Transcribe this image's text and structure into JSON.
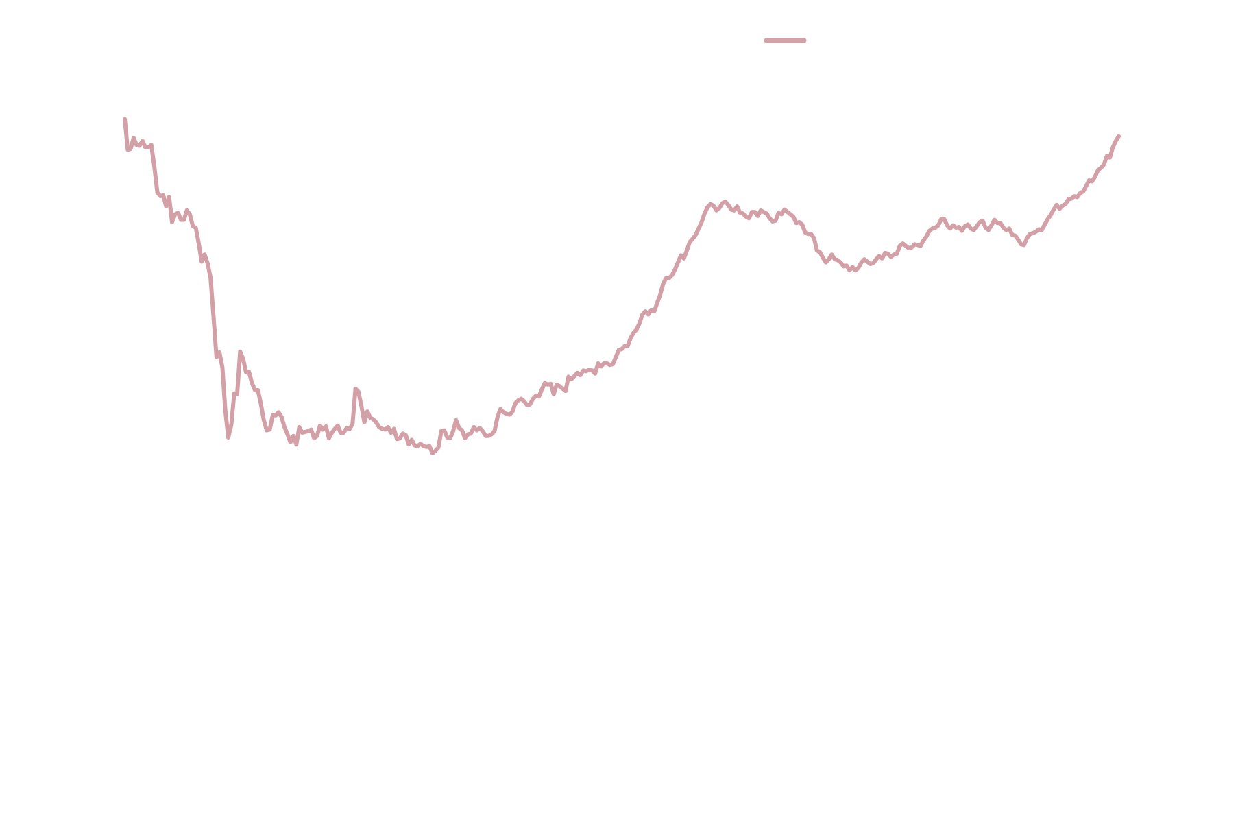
{
  "chart_data": {
    "type": "line",
    "title": "",
    "xlabel": "",
    "ylabel": "",
    "grid": false,
    "axes_visible": false,
    "legend_placement": "top-center",
    "x_range": [
      0,
      364
    ],
    "ylim": [
      0,
      100
    ],
    "series": [
      {
        "color": "#d4a0a7",
        "values": [
          88.4,
          84.5,
          84.6,
          86.0,
          85.1,
          85.0,
          85.6,
          84.8,
          84.8,
          85.1,
          82.3,
          79.1,
          78.6,
          78.7,
          77.3,
          78.5,
          75.3,
          76.3,
          76.5,
          75.6,
          75.6,
          76.8,
          76.3,
          74.8,
          74.6,
          72.6,
          70.3,
          71.2,
          70.1,
          68.3,
          63.3,
          58.2,
          58.8,
          56.9,
          51.4,
          48.0,
          49.6,
          53.6,
          53.5,
          58.9,
          58.0,
          56.3,
          56.3,
          54.9,
          54.0,
          54.0,
          52.3,
          50.2,
          48.9,
          49.0,
          50.8,
          50.8,
          51.2,
          50.6,
          49.3,
          48.4,
          47.4,
          48.2,
          47.1,
          49.3,
          48.6,
          48.7,
          48.8,
          49.0,
          47.9,
          48.2,
          49.5,
          49.0,
          49.4,
          47.9,
          48.6,
          49.1,
          49.5,
          48.6,
          48.6,
          49.2,
          49.1,
          49.7,
          54.2,
          53.8,
          52.0,
          49.9,
          51.3,
          50.5,
          50.3,
          49.9,
          49.3,
          49.1,
          49.0,
          49.3,
          48.6,
          49.1,
          47.8,
          47.9,
          48.5,
          48.3,
          47.1,
          47.7,
          47.0,
          46.9,
          47.2,
          46.9,
          46.8,
          46.9,
          46.0,
          46.3,
          46.7,
          48.8,
          48.9,
          48.0,
          47.9,
          48.8,
          50.2,
          49.2,
          48.9,
          47.9,
          48.4,
          48.5,
          49.3,
          48.9,
          49.2,
          48.8,
          48.2,
          48.2,
          48.4,
          48.8,
          50.6,
          51.6,
          51.2,
          51.0,
          50.9,
          51.2,
          52.3,
          52.7,
          52.9,
          52.6,
          52.1,
          52.2,
          52.9,
          53.3,
          53.2,
          54.1,
          54.9,
          54.7,
          54.8,
          53.5,
          54.7,
          54.5,
          54.2,
          53.9,
          55.7,
          55.4,
          55.8,
          56.2,
          55.9,
          56.5,
          56.4,
          56.6,
          56.5,
          56.1,
          57.4,
          57.0,
          57.4,
          57.4,
          57.2,
          57.3,
          58.2,
          59.1,
          59.2,
          59.6,
          59.6,
          60.6,
          61.3,
          61.7,
          62.5,
          63.6,
          64.0,
          63.6,
          64.2,
          64.0,
          65.1,
          66.1,
          67.5,
          68.2,
          68.2,
          68.6,
          69.3,
          70.2,
          71.1,
          70.7,
          71.7,
          72.8,
          73.2,
          73.7,
          74.5,
          75.3,
          76.4,
          77.2,
          77.6,
          77.4,
          76.8,
          77.1,
          77.7,
          77.9,
          77.5,
          76.9,
          76.8,
          77.3,
          76.5,
          76.4,
          76.0,
          75.8,
          76.6,
          76.6,
          76.1,
          76.8,
          76.6,
          76.4,
          75.8,
          75.4,
          75.5,
          76.5,
          76.3,
          76.9,
          76.6,
          76.3,
          76.0,
          75.2,
          75.3,
          75.0,
          74.0,
          73.8,
          73.8,
          73.3,
          71.7,
          71.5,
          70.8,
          70.2,
          70.6,
          71.2,
          70.6,
          70.5,
          70.2,
          69.7,
          69.8,
          69.2,
          69.6,
          69.2,
          69.5,
          70.2,
          70.6,
          70.3,
          70.0,
          70.1,
          70.6,
          71.0,
          70.7,
          71.4,
          71.3,
          70.9,
          71.2,
          71.3,
          72.3,
          72.6,
          72.3,
          72.0,
          72.1,
          72.5,
          72.4,
          72.3,
          73.0,
          73.5,
          74.2,
          74.5,
          74.6,
          74.9,
          75.7,
          75.7,
          74.9,
          74.5,
          74.9,
          74.6,
          74.7,
          74.2,
          74.8,
          75.0,
          74.5,
          74.3,
          74.8,
          75.3,
          75.5,
          74.6,
          74.3,
          74.9,
          75.6,
          75.2,
          75.2,
          74.6,
          74.3,
          74.5,
          73.7,
          73.6,
          73.1,
          72.5,
          72.4,
          73.3,
          73.8,
          73.9,
          74.1,
          74.4,
          74.3,
          75.0,
          75.7,
          76.2,
          76.9,
          77.5,
          77.0,
          77.4,
          77.6,
          78.2,
          78.3,
          78.6,
          78.5,
          79.0,
          79.2,
          79.9,
          80.6,
          80.5,
          81.1,
          81.9,
          82.2,
          82.6,
          83.7,
          83.5,
          84.8,
          85.6,
          86.2
        ]
      }
    ]
  }
}
